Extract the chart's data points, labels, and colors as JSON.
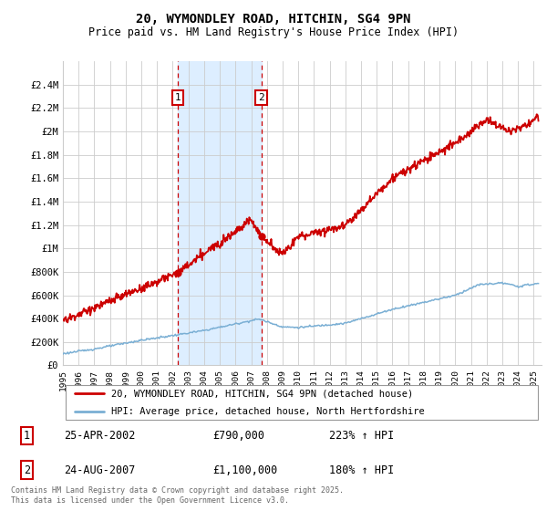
{
  "title": "20, WYMONDLEY ROAD, HITCHIN, SG4 9PN",
  "subtitle": "Price paid vs. HM Land Registry's House Price Index (HPI)",
  "legend_line1": "20, WYMONDLEY ROAD, HITCHIN, SG4 9PN (detached house)",
  "legend_line2": "HPI: Average price, detached house, North Hertfordshire",
  "footnote": "Contains HM Land Registry data © Crown copyright and database right 2025.\nThis data is licensed under the Open Government Licence v3.0.",
  "sale1_date": "25-APR-2002",
  "sale1_price": "£790,000",
  "sale1_hpi": "223% ↑ HPI",
  "sale2_date": "24-AUG-2007",
  "sale2_price": "£1,100,000",
  "sale2_hpi": "180% ↑ HPI",
  "property_color": "#cc0000",
  "hpi_color": "#7aafd4",
  "shading_color": "#ddeeff",
  "vline_color": "#cc0000",
  "grid_color": "#cccccc",
  "bg_color": "#ffffff",
  "ylim": [
    0,
    2600000
  ],
  "yticks": [
    0,
    200000,
    400000,
    600000,
    800000,
    1000000,
    1200000,
    1400000,
    1600000,
    1800000,
    2000000,
    2200000,
    2400000
  ],
  "ytick_labels": [
    "£0",
    "£200K",
    "£400K",
    "£600K",
    "£800K",
    "£1M",
    "£1.2M",
    "£1.4M",
    "£1.6M",
    "£1.8M",
    "£2M",
    "£2.2M",
    "£2.4M"
  ],
  "sale1_x": 2002.32,
  "sale2_x": 2007.65,
  "sale1_y": 790000,
  "sale2_y": 1100000,
  "xmin": 1995,
  "xmax": 2025.5
}
